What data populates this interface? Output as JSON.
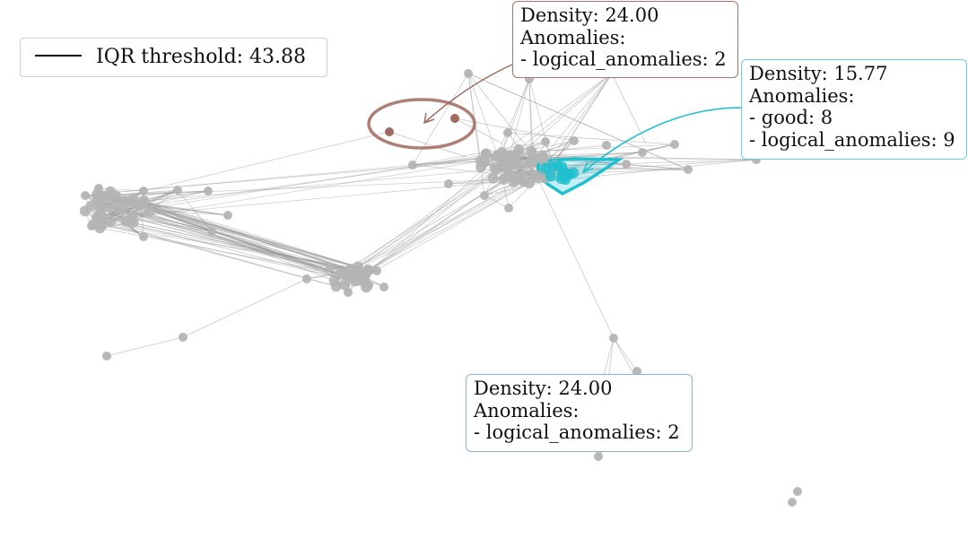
{
  "legend": {
    "label": "IQR threshold: 43.88",
    "line_color": "#000000"
  },
  "annotations": [
    {
      "id": "brown",
      "color": "#a0695f",
      "lines": [
        "Density: 24.00",
        "Anomalies:",
        "- logical_anomalies: 2"
      ]
    },
    {
      "id": "cyan",
      "color": "#1fbfcf",
      "lines": [
        "Density: 15.77",
        "Anomalies:",
        "- good: 8",
        "- logical_anomalies: 9"
      ]
    },
    {
      "id": "blue",
      "color": "#a8cfe6",
      "lines": [
        "Density: 24.00",
        "Anomalies:",
        "- logical_anomalies: 2"
      ]
    }
  ],
  "colors": {
    "node": "#b4b4b4",
    "edge": "#9a9a9a",
    "faint_node": "#e6e6e6",
    "brown": "#a0695f",
    "cyan": "#1fbfcf",
    "light_blue": "#a8cfe6"
  }
}
